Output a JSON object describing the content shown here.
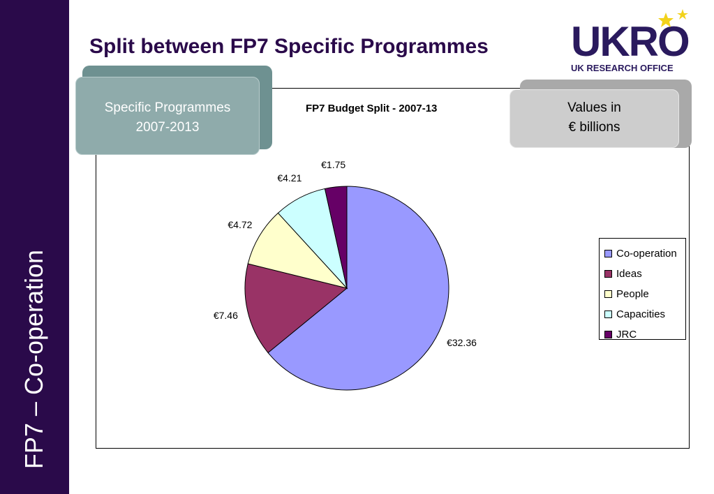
{
  "slide": {
    "title": "Split between FP7 Specific Programmes",
    "sidebar_text": "FP7 – Co-operation",
    "logo_text": "UKRO",
    "logo_subtext": "UK RESEARCH OFFICE"
  },
  "callouts": {
    "left_line1": "Specific Programmes",
    "left_line2": "2007-2013",
    "right_line1": "Values in",
    "right_line2": "€ billions"
  },
  "chart_data": {
    "type": "pie",
    "title": "FP7 Budget Split - 2007-13",
    "categories": [
      "Co-operation",
      "Ideas",
      "People",
      "Capacities",
      "JRC"
    ],
    "values": [
      32.36,
      7.46,
      4.72,
      4.21,
      1.75
    ],
    "data_labels": [
      "€32.36",
      "€7.46",
      "€4.72",
      "€4.21",
      "€1.75"
    ],
    "colors": [
      "#9999ff",
      "#993366",
      "#ffffcc",
      "#ccffff",
      "#660066"
    ],
    "legend_position": "right",
    "start_angle": "top, clockwise"
  }
}
